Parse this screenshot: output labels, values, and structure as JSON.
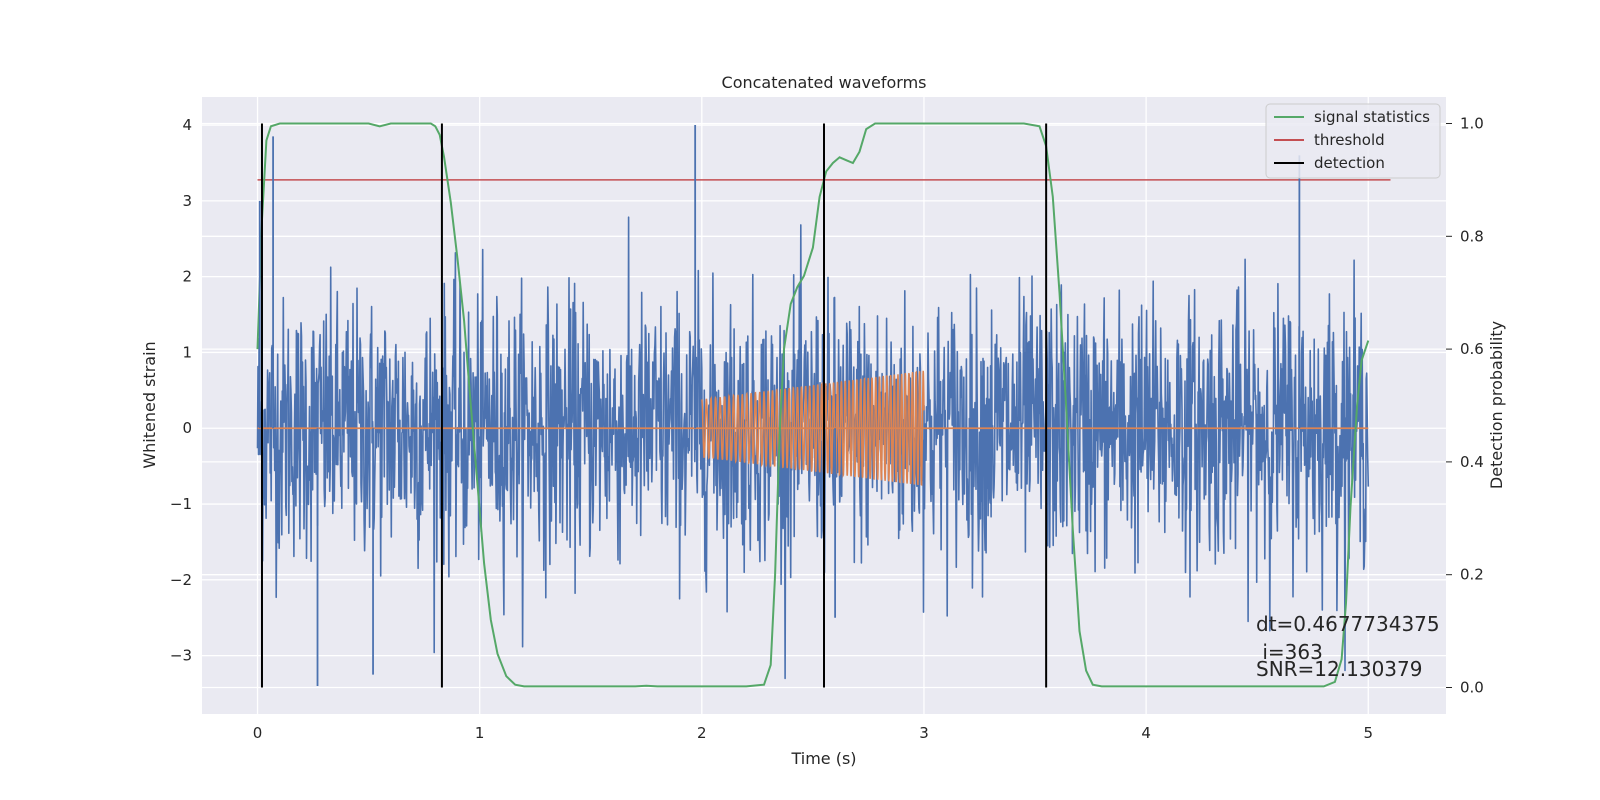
{
  "chart_data": {
    "type": "line",
    "title": "Concatenated waveforms",
    "xlabel": "Time (s)",
    "ylabel": "Whitened strain",
    "ylabel_right": "Detection probability",
    "xlim": [
      -0.25,
      5.35
    ],
    "ylim": [
      -3.77,
      4.37
    ],
    "ylim_right": [
      -0.047,
      1.047
    ],
    "x_ticks": [
      0,
      1,
      2,
      3,
      4,
      5
    ],
    "y_ticks": [
      -3,
      -2,
      -1,
      0,
      1,
      2,
      3,
      4
    ],
    "y_ticks_right": [
      0.0,
      0.2,
      0.4,
      0.6,
      0.8,
      1.0
    ],
    "x_tick_labels": [
      "0",
      "1",
      "2",
      "3",
      "4",
      "5"
    ],
    "y_tick_labels": [
      "−3",
      "−2",
      "−1",
      "0",
      "1",
      "2",
      "3",
      "4"
    ],
    "y_tick_labels_right": [
      "0.0",
      "0.2",
      "0.4",
      "0.6",
      "0.8",
      "1.0"
    ],
    "grid": true,
    "legend_position": "top-right",
    "noise": {
      "x_range": [
        0,
        5
      ],
      "std": 0.85,
      "color": "#4c72b0",
      "spikes": [
        [
          0.01,
          3.0
        ],
        [
          0.07,
          3.85
        ],
        [
          0.27,
          -3.4
        ],
        [
          1.97,
          4.0
        ],
        [
          4.69,
          3.6
        ],
        [
          0.52,
          -3.25
        ],
        [
          2.6,
          -2.5
        ]
      ]
    },
    "injections": [
      {
        "t_start": 2.0,
        "t_end": 3.0,
        "amp_start": 0.38,
        "amp_end": 0.76,
        "cycles": 48,
        "color": "#dd8452"
      }
    ],
    "injection_baseline": {
      "x_range": [
        0,
        5
      ],
      "value": 0
    },
    "series": [
      {
        "name": "signal statistics",
        "axis": "right",
        "color": "#55a868",
        "points": [
          [
            0.0,
            0.6
          ],
          [
            0.02,
            0.83
          ],
          [
            0.04,
            0.97
          ],
          [
            0.06,
            0.995
          ],
          [
            0.1,
            1.0
          ],
          [
            0.5,
            1.0
          ],
          [
            0.55,
            0.995
          ],
          [
            0.6,
            1.0
          ],
          [
            0.78,
            1.0
          ],
          [
            0.8,
            0.995
          ],
          [
            0.82,
            0.98
          ],
          [
            0.84,
            0.94
          ],
          [
            0.87,
            0.86
          ],
          [
            0.9,
            0.76
          ],
          [
            0.93,
            0.65
          ],
          [
            0.96,
            0.5
          ],
          [
            0.99,
            0.36
          ],
          [
            1.02,
            0.22
          ],
          [
            1.05,
            0.12
          ],
          [
            1.08,
            0.06
          ],
          [
            1.12,
            0.02
          ],
          [
            1.16,
            0.005
          ],
          [
            1.2,
            0.002
          ],
          [
            1.7,
            0.002
          ],
          [
            1.75,
            0.003
          ],
          [
            1.8,
            0.002
          ],
          [
            2.2,
            0.002
          ],
          [
            2.28,
            0.005
          ],
          [
            2.31,
            0.04
          ],
          [
            2.33,
            0.2
          ],
          [
            2.35,
            0.45
          ],
          [
            2.37,
            0.6
          ],
          [
            2.4,
            0.68
          ],
          [
            2.43,
            0.71
          ],
          [
            2.46,
            0.73
          ],
          [
            2.5,
            0.78
          ],
          [
            2.53,
            0.87
          ],
          [
            2.56,
            0.915
          ],
          [
            2.59,
            0.93
          ],
          [
            2.62,
            0.94
          ],
          [
            2.65,
            0.935
          ],
          [
            2.68,
            0.93
          ],
          [
            2.71,
            0.95
          ],
          [
            2.74,
            0.99
          ],
          [
            2.78,
            1.0
          ],
          [
            3.45,
            1.0
          ],
          [
            3.52,
            0.995
          ],
          [
            3.55,
            0.96
          ],
          [
            3.58,
            0.87
          ],
          [
            3.61,
            0.7
          ],
          [
            3.64,
            0.5
          ],
          [
            3.67,
            0.28
          ],
          [
            3.7,
            0.1
          ],
          [
            3.73,
            0.03
          ],
          [
            3.76,
            0.005
          ],
          [
            3.8,
            0.002
          ],
          [
            4.8,
            0.002
          ],
          [
            4.85,
            0.01
          ],
          [
            4.88,
            0.05
          ],
          [
            4.9,
            0.15
          ],
          [
            4.92,
            0.32
          ],
          [
            4.95,
            0.5
          ],
          [
            4.97,
            0.58
          ],
          [
            5.0,
            0.615
          ]
        ]
      },
      {
        "name": "threshold",
        "axis": "right",
        "color": "#c44e52",
        "points": [
          [
            0.0,
            0.9
          ],
          [
            5.1,
            0.9
          ]
        ]
      },
      {
        "name": "detection",
        "axis": "right",
        "color": "#000000",
        "vlines": [
          0.02,
          0.83,
          2.55,
          3.55
        ],
        "vline_range": [
          0.0,
          1.0
        ]
      }
    ],
    "annotations": [
      "dt=0.4677734375",
      " i=363",
      "SNR=12.130379"
    ]
  }
}
